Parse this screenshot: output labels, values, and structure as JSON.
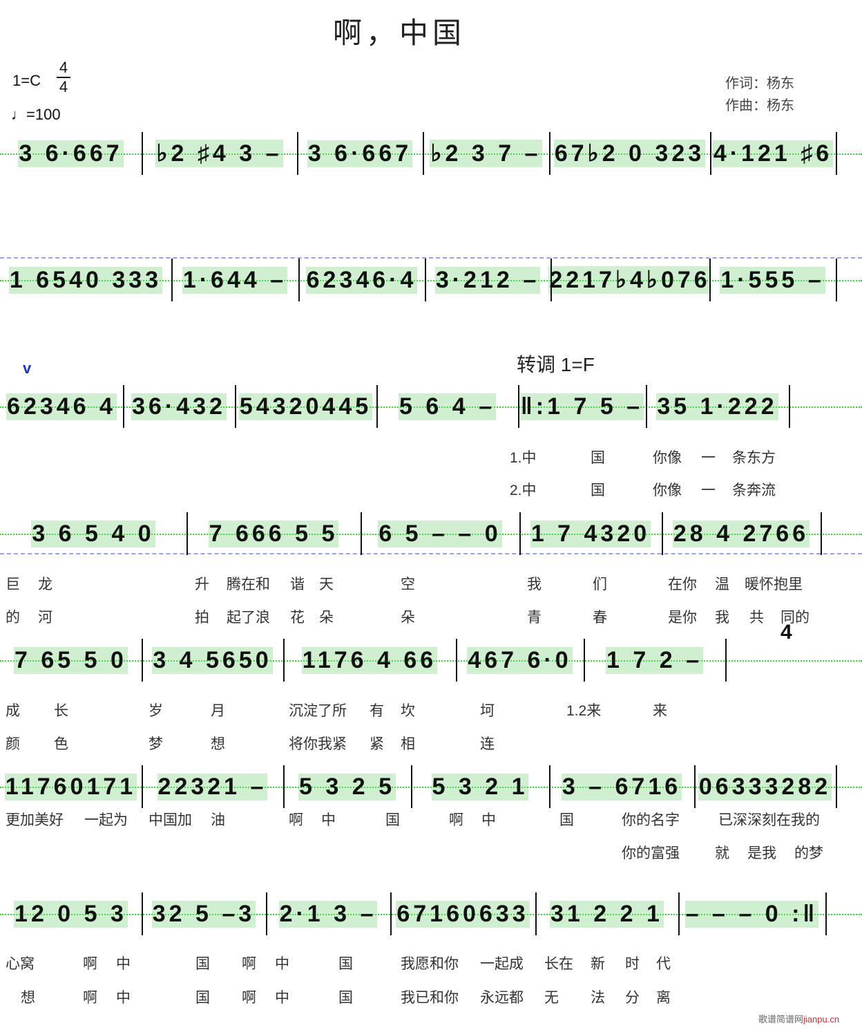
{
  "title": "啊，中国",
  "key": "1=C",
  "time_signature": {
    "top": "4",
    "bottom": "4"
  },
  "tempo": "=100",
  "credits": {
    "lyricist": "作词：杨东",
    "composer": "作曲：杨东"
  },
  "modulation": "转调 1=F",
  "breath_mark": "v",
  "extra_number": "4",
  "watermark": {
    "text": "歌谱简谱网",
    "url": "jianpu.cn"
  },
  "rows": [
    [
      "3 6·667",
      "♭2 ♯4 3 –",
      "3 6·667",
      "♭2 3 7 –",
      "67♭2 0 323",
      "4·121 ♯6"
    ],
    [
      "1 6540 333",
      "1·644 –",
      "62346·4",
      "3·212 –",
      "2217♭4♭076",
      "1·555 –"
    ],
    [
      "62346 4",
      "36·432",
      "54320445",
      "5 6 4 –",
      "‖:1 7 5 –",
      "35 1·222"
    ],
    [
      "3 6 5 4 0",
      "7 666 5 5",
      "6 5 – – 0",
      "1 7 4320",
      "28 4 2766"
    ],
    [
      "7 65 5 0",
      "3 4 5650",
      "1176 4 66",
      "467 6·0",
      "1 7 2 –"
    ],
    [
      "11760171",
      "22321 –",
      "5 3 2 5",
      "5 3 2 1",
      "3 – 6716",
      "06333282"
    ],
    [
      "12 0 5 3",
      "32 5 –3",
      "2·1 3 –",
      "67160633",
      "31 2 2 1",
      "– – – 0 :‖"
    ]
  ],
  "lyrics": [
    [
      "1.中",
      "国",
      "你像",
      "一",
      "条东方"
    ],
    [
      "2.中",
      "国",
      "你像",
      "一",
      "条奔流"
    ],
    [
      "巨",
      "龙",
      "升",
      "腾在和",
      "谐",
      "天",
      "空",
      "我",
      "们",
      "在你",
      "温",
      "暖怀抱里"
    ],
    [
      "的",
      "河",
      "拍",
      "起了浪",
      "花",
      "朵",
      "朵",
      "青",
      "春",
      "是你",
      "我",
      "共",
      "同的"
    ],
    [
      "成",
      "长",
      "岁",
      "月",
      "沉淀了所",
      "有",
      "坎",
      "坷",
      "1.2来",
      "来"
    ],
    [
      "颜",
      "色",
      "梦",
      "想",
      "将你我紧",
      "紧",
      "相",
      "连"
    ],
    [
      "更加美好",
      "一起为",
      "中国加",
      "油",
      "啊",
      "中",
      "国",
      "啊",
      "中",
      "国",
      "你的名字",
      "已深深刻在我的"
    ],
    [
      "你的富强",
      "就",
      "是我",
      "的梦"
    ],
    [
      "心窝",
      "啊",
      "中",
      "国",
      "啊",
      "中",
      "国",
      "我愿和你",
      "一起成",
      "长在",
      "新",
      "时",
      "代"
    ],
    [
      "想",
      "啊",
      "中",
      "国",
      "啊",
      "中",
      "国",
      "我已和你",
      "永远都",
      "无",
      "法",
      "分",
      "离"
    ]
  ]
}
